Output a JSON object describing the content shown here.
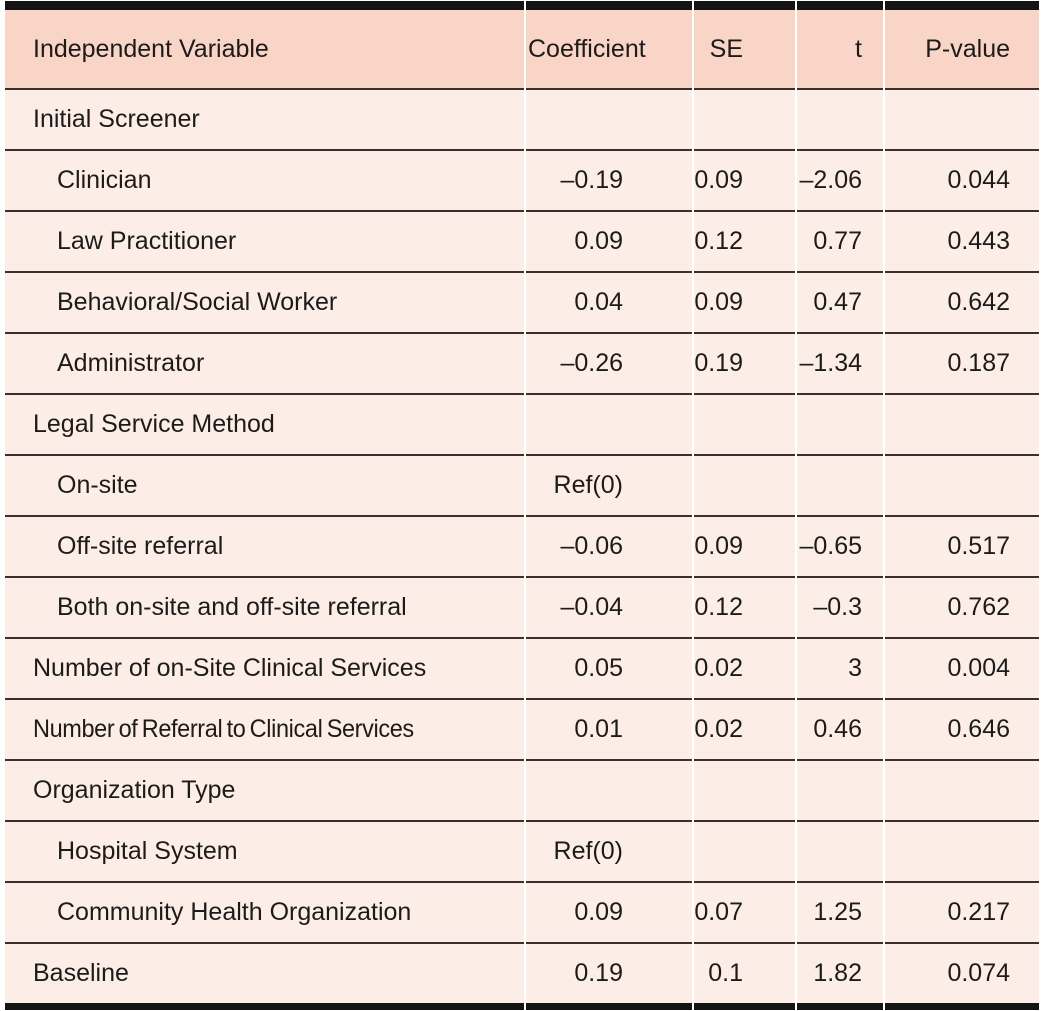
{
  "table": {
    "title_semantic": "regression-results-table",
    "columns": [
      {
        "label": "Independent Variable"
      },
      {
        "label": "Coefficient"
      },
      {
        "label": "SE"
      },
      {
        "label": "t"
      },
      {
        "label": "P-value"
      }
    ],
    "rows": [
      {
        "label": "Initial Screener",
        "type": "section",
        "coefficient": "",
        "se": "",
        "t": "",
        "p": ""
      },
      {
        "label": "Clinician",
        "type": "sub",
        "coefficient": "–0.19",
        "se": "0.09",
        "t": "–2.06",
        "p": "0.044"
      },
      {
        "label": "Law Practitioner",
        "type": "sub",
        "coefficient": "0.09",
        "se": "0.12",
        "t": "0.77",
        "p": "0.443"
      },
      {
        "label": "Behavioral/Social Worker",
        "type": "sub",
        "coefficient": "0.04",
        "se": "0.09",
        "t": "0.47",
        "p": "0.642"
      },
      {
        "label": "Administrator",
        "type": "sub",
        "coefficient": "–0.26",
        "se": "0.19",
        "t": "–1.34",
        "p": "0.187"
      },
      {
        "label": "Legal Service Method",
        "type": "section",
        "coefficient": "",
        "se": "",
        "t": "",
        "p": ""
      },
      {
        "label": "On-site",
        "type": "sub",
        "coefficient": "Ref(0)",
        "se": "",
        "t": "",
        "p": ""
      },
      {
        "label": "Off-site referral",
        "type": "sub",
        "coefficient": "–0.06",
        "se": "0.09",
        "t": "–0.65",
        "p": "0.517"
      },
      {
        "label": "Both on-site and off-site referral",
        "type": "sub",
        "coefficient": "–0.04",
        "se": "0.12",
        "t": "–0.3",
        "p": "0.762"
      },
      {
        "label": "Number of on-Site Clinical Services",
        "type": "top",
        "coefficient": "0.05",
        "se": "0.02",
        "t": "3",
        "p": "0.004"
      },
      {
        "label": "Number of Referral to Clinical Services",
        "type": "top",
        "condensed": true,
        "coefficient": "0.01",
        "se": "0.02",
        "t": "0.46",
        "p": "0.646"
      },
      {
        "label": "Organization Type",
        "type": "section",
        "coefficient": "",
        "se": "",
        "t": "",
        "p": ""
      },
      {
        "label": "Hospital System",
        "type": "sub",
        "coefficient": "Ref(0)",
        "se": "",
        "t": "",
        "p": ""
      },
      {
        "label": "Community Health Organization",
        "type": "sub",
        "coefficient": "0.09",
        "se": "0.07",
        "t": "1.25",
        "p": "0.217"
      },
      {
        "label": "Baseline",
        "type": "top",
        "coefficient": "0.19",
        "se": "0.1",
        "t": "1.82",
        "p": "0.074"
      }
    ],
    "colors": {
      "header_bg": "#f9d5c7",
      "row_bg": "#fceee6",
      "rule": "#38302d",
      "frame": "#141414",
      "text": "#1d1b1a"
    }
  }
}
